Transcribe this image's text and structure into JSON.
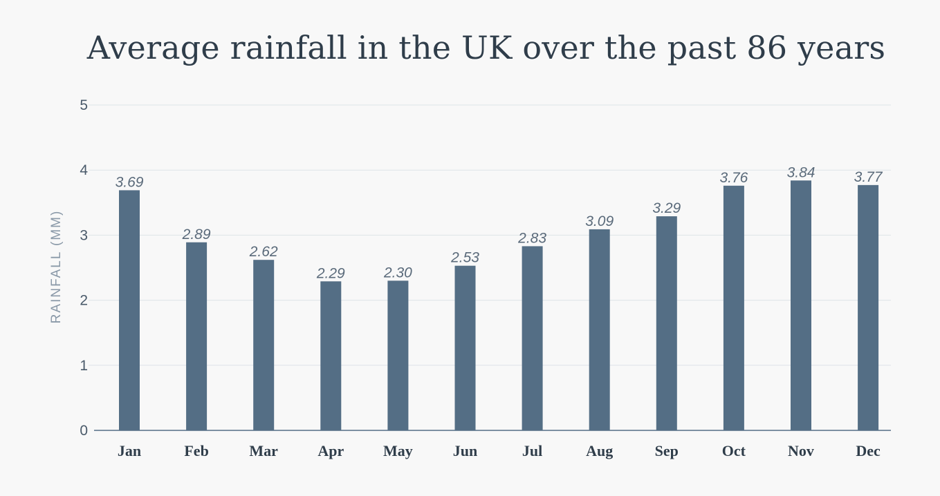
{
  "chart_data": {
    "type": "bar",
    "title": "Average rainfall in the UK over the past 86 years",
    "ylabel": "RAINFALL (MM)",
    "xlabel": "",
    "categories": [
      "Jan",
      "Feb",
      "Mar",
      "Apr",
      "May",
      "Jun",
      "Jul",
      "Aug",
      "Sep",
      "Oct",
      "Nov",
      "Dec"
    ],
    "values": [
      3.69,
      2.89,
      2.62,
      2.29,
      2.3,
      2.53,
      2.83,
      3.09,
      3.29,
      3.76,
      3.84,
      3.77
    ],
    "value_labels": [
      "3.69",
      "2.89",
      "2.62",
      "2.29",
      "2.30",
      "2.53",
      "2.83",
      "3.09",
      "3.29",
      "3.76",
      "3.84",
      "3.77"
    ],
    "ylim": [
      0,
      5
    ],
    "yticks": [
      "0",
      "1",
      "2",
      "3",
      "4",
      "5"
    ],
    "grid": true,
    "legend": "none",
    "colors": {
      "bar": "#546e85",
      "grid": "#dde3e7",
      "axis": "#546e85"
    }
  }
}
